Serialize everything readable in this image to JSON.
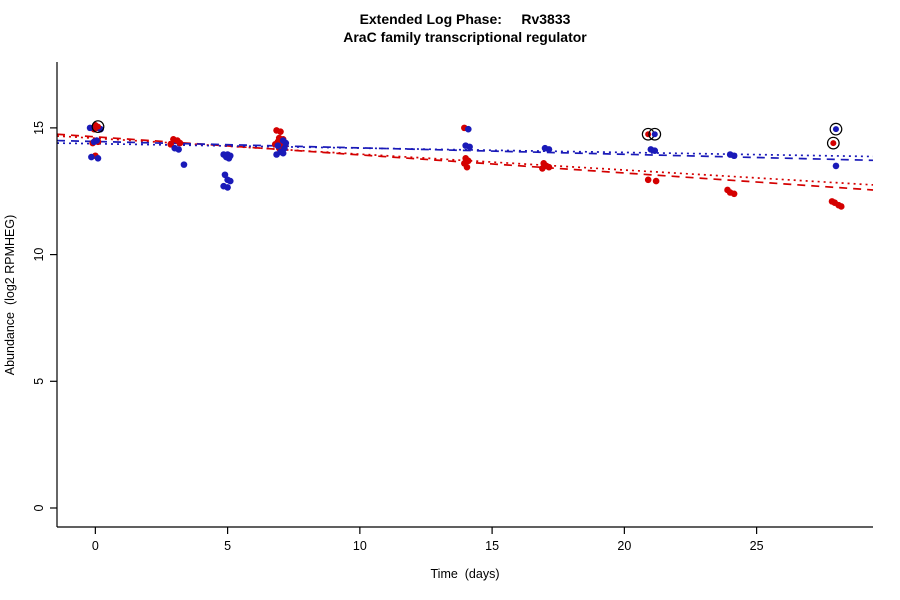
{
  "chart_data": {
    "type": "scatter",
    "title": "Extended Log Phase:     Rv3833",
    "subtitle": "AraC family transcriptional regulator",
    "xlabel": "Time  (days)",
    "ylabel": "Abundance  (log2 RPMHEG)",
    "xlim": [
      -1.45,
      29.4
    ],
    "ylim": [
      -0.75,
      17.6
    ],
    "xticks": [
      0,
      5,
      10,
      15,
      20,
      25
    ],
    "yticks": [
      0,
      5,
      10,
      15
    ],
    "grid": false,
    "legend": "none",
    "colors": {
      "red": "#d40000",
      "blue": "#1a1ab8",
      "circle_outline": "#000000",
      "axis": "#000000"
    },
    "series": [
      {
        "name": "red-points",
        "color": "red",
        "points": [
          [
            0.0,
            15.1
          ],
          [
            0.1,
            15.0
          ],
          [
            -0.05,
            14.95
          ],
          [
            0.1,
            14.45
          ],
          [
            -0.1,
            14.4
          ],
          [
            0.0,
            13.9
          ],
          [
            2.95,
            14.55
          ],
          [
            3.1,
            14.5
          ],
          [
            3.2,
            14.4
          ],
          [
            2.85,
            14.35
          ],
          [
            6.85,
            14.9
          ],
          [
            7.0,
            14.85
          ],
          [
            6.95,
            14.6
          ],
          [
            7.1,
            14.55
          ],
          [
            6.9,
            14.45
          ],
          [
            7.05,
            14.4
          ],
          [
            6.8,
            14.35
          ],
          [
            7.15,
            14.3
          ],
          [
            6.95,
            14.2
          ],
          [
            7.0,
            14.1
          ],
          [
            13.95,
            15.0
          ],
          [
            14.0,
            13.8
          ],
          [
            14.1,
            13.7
          ],
          [
            13.95,
            13.6
          ],
          [
            14.05,
            13.45
          ],
          [
            16.95,
            13.6
          ],
          [
            17.05,
            13.5
          ],
          [
            17.15,
            13.45
          ],
          [
            16.9,
            13.4
          ],
          [
            20.9,
            12.95
          ],
          [
            21.2,
            12.9
          ],
          [
            23.9,
            12.55
          ],
          [
            24.0,
            12.45
          ],
          [
            24.15,
            12.4
          ],
          [
            27.85,
            12.1
          ],
          [
            27.95,
            12.05
          ],
          [
            28.1,
            11.95
          ],
          [
            28.2,
            11.9
          ]
        ]
      },
      {
        "name": "blue-points",
        "color": "blue",
        "points": [
          [
            -0.2,
            15.0
          ],
          [
            0.2,
            14.95
          ],
          [
            0.05,
            14.5
          ],
          [
            -0.05,
            14.45
          ],
          [
            -0.15,
            13.85
          ],
          [
            0.1,
            13.8
          ],
          [
            3.0,
            14.2
          ],
          [
            3.15,
            14.15
          ],
          [
            3.35,
            13.55
          ],
          [
            4.85,
            13.95
          ],
          [
            5.0,
            13.95
          ],
          [
            5.1,
            13.9
          ],
          [
            4.95,
            13.85
          ],
          [
            5.05,
            13.8
          ],
          [
            4.9,
            13.15
          ],
          [
            5.0,
            12.95
          ],
          [
            5.1,
            12.9
          ],
          [
            4.85,
            12.7
          ],
          [
            5.0,
            12.65
          ],
          [
            7.1,
            14.5
          ],
          [
            7.2,
            14.4
          ],
          [
            6.9,
            14.3
          ],
          [
            7.15,
            14.2
          ],
          [
            7.0,
            14.05
          ],
          [
            7.1,
            14.0
          ],
          [
            6.85,
            13.95
          ],
          [
            14.1,
            14.95
          ],
          [
            14.0,
            14.3
          ],
          [
            14.15,
            14.25
          ],
          [
            17.0,
            14.2
          ],
          [
            17.15,
            14.15
          ],
          [
            21.0,
            14.15
          ],
          [
            21.15,
            14.1
          ],
          [
            24.0,
            13.95
          ],
          [
            24.15,
            13.9
          ],
          [
            28.0,
            13.5
          ]
        ]
      }
    ],
    "circled_points": [
      {
        "x": 0.1,
        "y": 15.05,
        "color": "red"
      },
      {
        "x": 20.9,
        "y": 14.75,
        "color": "red"
      },
      {
        "x": 21.15,
        "y": 14.75,
        "color": "blue"
      },
      {
        "x": 28.0,
        "y": 14.95,
        "color": "blue"
      },
      {
        "x": 27.9,
        "y": 14.4,
        "color": "red"
      }
    ],
    "trend_lines": [
      {
        "name": "red-dashed",
        "color": "red",
        "dash": "dashed",
        "x1": -1.45,
        "y1": 14.75,
        "x2": 29.4,
        "y2": 12.55
      },
      {
        "name": "red-dotted",
        "color": "red",
        "dash": "dotted",
        "x1": -1.45,
        "y1": 14.68,
        "x2": 29.4,
        "y2": 12.75
      },
      {
        "name": "blue-dashed",
        "color": "blue",
        "dash": "dashed",
        "x1": -1.45,
        "y1": 14.5,
        "x2": 29.4,
        "y2": 13.72
      },
      {
        "name": "blue-dotted",
        "color": "blue",
        "dash": "dotted",
        "x1": -1.45,
        "y1": 14.4,
        "x2": 29.4,
        "y2": 13.87
      }
    ]
  }
}
